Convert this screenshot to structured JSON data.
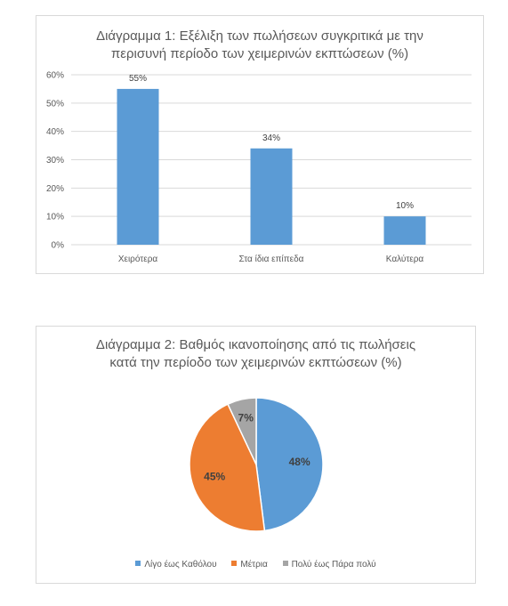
{
  "chart_data": [
    {
      "type": "bar",
      "title_lines": [
        "Διάγραμμα 1: Εξέλιξη των πωλήσεων συγκριτικά με την",
        "περισυνή περίοδο των χειμερινών εκπτώσεων (%)"
      ],
      "categories": [
        "Χειρότερα",
        "Στα ίδια επίπεδα",
        "Καλύτερα"
      ],
      "values": [
        55,
        34,
        10
      ],
      "data_labels": [
        "55%",
        "34%",
        "10%"
      ],
      "y_ticks": [
        "0%",
        "10%",
        "20%",
        "30%",
        "40%",
        "50%",
        "60%"
      ],
      "ylim": [
        0,
        60
      ],
      "grid": true,
      "color": "#5b9bd5"
    },
    {
      "type": "pie",
      "title_lines": [
        "Διάγραμμα 2: Βαθμός ικανοποίησης από τις πωλήσεις",
        "κατά την περίοδο των χειμερινών εκπτώσεων (%)"
      ],
      "categories": [
        "Λίγο έως Καθόλου",
        "Μέτρια",
        "Πολύ έως Πάρα πολύ"
      ],
      "values": [
        48,
        45,
        7
      ],
      "data_labels": [
        "48%",
        "45%",
        "7%"
      ],
      "colors": [
        "#5b9bd5",
        "#ed7d31",
        "#a5a5a5"
      ],
      "legend_position": "bottom"
    }
  ]
}
